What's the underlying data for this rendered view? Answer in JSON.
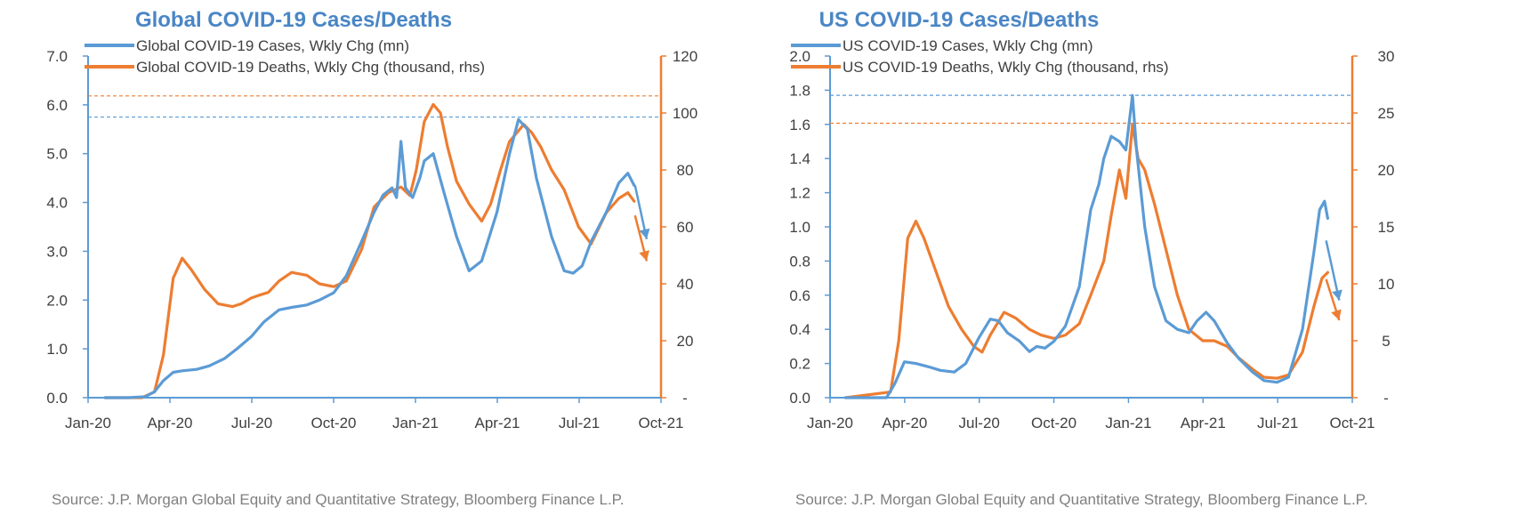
{
  "colors": {
    "cases": "#5B9BD5",
    "deaths": "#ED7D31",
    "title": "#4A86C5",
    "axis_text": "#404040"
  },
  "x_ticks": [
    "Jan-20",
    "Apr-20",
    "Jul-20",
    "Oct-20",
    "Jan-21",
    "Apr-21",
    "Jul-21",
    "Oct-21"
  ],
  "chart_data": [
    {
      "type": "line",
      "title": "Global COVID-19 Cases/Deaths",
      "source": "Source: J.P. Morgan Global Equity and Quantitative Strategy, Bloomberg Finance L.P.",
      "xlim": [
        "2020-01-01",
        "2021-10-01"
      ],
      "ylim": [
        0,
        7
      ],
      "y2lim": [
        0,
        120
      ],
      "y_ticks": [
        "0.0",
        "1.0",
        "2.0",
        "3.0",
        "4.0",
        "5.0",
        "6.0",
        "7.0"
      ],
      "y2_ticks": [
        "-",
        "20",
        "40",
        "60",
        "80",
        "100",
        "120"
      ],
      "legend_position": "top-left",
      "peak_lines": [
        {
          "axis": "y",
          "value": 5.75
        },
        {
          "axis": "y2",
          "value": 106
        }
      ],
      "arrows": [
        {
          "series": "cases",
          "from": [
            "2021-09-02",
            4.35
          ],
          "to": [
            "2021-09-15",
            3.25
          ]
        },
        {
          "series": "deaths",
          "from": [
            "2021-09-02",
            64
          ],
          "to": [
            "2021-09-15",
            48
          ]
        }
      ],
      "series": [
        {
          "key": "cases",
          "axis": "y",
          "name": "Global COVID-19 Cases, Wkly Chg (mn)",
          "x": [
            "2020-01-20",
            "2020-02-15",
            "2020-03-05",
            "2020-03-15",
            "2020-03-25",
            "2020-04-05",
            "2020-04-15",
            "2020-05-01",
            "2020-05-15",
            "2020-06-01",
            "2020-06-15",
            "2020-07-01",
            "2020-07-15",
            "2020-08-01",
            "2020-08-15",
            "2020-09-01",
            "2020-09-15",
            "2020-10-01",
            "2020-10-15",
            "2020-11-01",
            "2020-11-15",
            "2020-11-25",
            "2020-12-05",
            "2020-12-10",
            "2020-12-15",
            "2020-12-20",
            "2020-12-28",
            "2021-01-05",
            "2021-01-10",
            "2021-01-20",
            "2021-02-01",
            "2021-02-15",
            "2021-03-01",
            "2021-03-15",
            "2021-04-01",
            "2021-04-15",
            "2021-04-25",
            "2021-05-05",
            "2021-05-15",
            "2021-06-01",
            "2021-06-15",
            "2021-06-25",
            "2021-07-05",
            "2021-07-15",
            "2021-08-01",
            "2021-08-15",
            "2021-08-25",
            "2021-09-01"
          ],
          "values": [
            0.0,
            0.0,
            0.02,
            0.12,
            0.35,
            0.52,
            0.55,
            0.58,
            0.65,
            0.8,
            1.0,
            1.25,
            1.55,
            1.8,
            1.85,
            1.9,
            2.0,
            2.15,
            2.5,
            3.2,
            3.8,
            4.15,
            4.3,
            4.1,
            5.25,
            4.3,
            4.1,
            4.5,
            4.85,
            5.0,
            4.2,
            3.3,
            2.6,
            2.8,
            3.8,
            5.0,
            5.7,
            5.5,
            4.5,
            3.3,
            2.6,
            2.55,
            2.7,
            3.2,
            3.8,
            4.4,
            4.6,
            4.35
          ]
        },
        {
          "key": "deaths",
          "axis": "y2",
          "name": "Global COVID-19 Deaths, Wkly Chg (thousand, rhs)",
          "x": [
            "2020-01-20",
            "2020-03-01",
            "2020-03-15",
            "2020-03-25",
            "2020-04-05",
            "2020-04-15",
            "2020-04-25",
            "2020-05-10",
            "2020-05-25",
            "2020-06-10",
            "2020-06-20",
            "2020-07-01",
            "2020-07-10",
            "2020-07-20",
            "2020-08-01",
            "2020-08-15",
            "2020-09-01",
            "2020-09-15",
            "2020-10-01",
            "2020-10-15",
            "2020-11-01",
            "2020-11-15",
            "2020-12-01",
            "2020-12-15",
            "2020-12-25",
            "2021-01-01",
            "2021-01-10",
            "2021-01-20",
            "2021-01-28",
            "2021-02-05",
            "2021-02-15",
            "2021-03-01",
            "2021-03-15",
            "2021-03-25",
            "2021-04-05",
            "2021-04-15",
            "2021-05-01",
            "2021-05-10",
            "2021-05-20",
            "2021-06-01",
            "2021-06-15",
            "2021-07-01",
            "2021-07-15",
            "2021-08-01",
            "2021-08-15",
            "2021-08-25",
            "2021-09-01"
          ],
          "values": [
            0,
            0,
            2,
            15,
            42,
            49,
            45,
            38,
            33,
            32,
            33,
            35,
            36,
            37,
            41,
            44,
            43,
            40,
            39,
            41,
            52,
            67,
            72,
            74,
            71,
            80,
            97,
            103,
            100,
            88,
            76,
            68,
            62,
            68,
            80,
            90,
            96,
            93,
            88,
            80,
            73,
            60,
            54,
            65,
            70,
            72,
            69
          ]
        }
      ]
    },
    {
      "type": "line",
      "title": "US COVID-19 Cases/Deaths",
      "source": "Source: J.P. Morgan Global Equity and Quantitative Strategy, Bloomberg Finance L.P.",
      "xlim": [
        "2020-01-01",
        "2021-10-01"
      ],
      "ylim": [
        0,
        2
      ],
      "y2lim": [
        0,
        30
      ],
      "y_ticks": [
        "0.0",
        "0.2",
        "0.4",
        "0.6",
        "0.8",
        "1.0",
        "1.2",
        "1.4",
        "1.6",
        "1.8",
        "2.0"
      ],
      "y2_ticks": [
        "-",
        "5",
        "10",
        "15",
        "20",
        "25",
        "30"
      ],
      "legend_position": "top-left",
      "peak_lines": [
        {
          "axis": "y",
          "value": 1.77
        },
        {
          "axis": "y2",
          "value": 24.1
        }
      ],
      "arrows": [
        {
          "series": "cases",
          "from": [
            "2021-08-30",
            0.92
          ],
          "to": [
            "2021-09-15",
            0.57
          ]
        },
        {
          "series": "deaths",
          "from": [
            "2021-08-30",
            10.4
          ],
          "to": [
            "2021-09-15",
            6.8
          ]
        }
      ],
      "series": [
        {
          "key": "cases",
          "axis": "y",
          "name": "US COVID-19 Cases, Wkly Chg (mn)",
          "x": [
            "2020-01-20",
            "2020-03-10",
            "2020-03-20",
            "2020-04-01",
            "2020-04-15",
            "2020-05-01",
            "2020-05-15",
            "2020-06-01",
            "2020-06-15",
            "2020-07-01",
            "2020-07-15",
            "2020-07-25",
            "2020-08-05",
            "2020-08-20",
            "2020-09-01",
            "2020-09-10",
            "2020-09-20",
            "2020-10-01",
            "2020-10-15",
            "2020-11-01",
            "2020-11-15",
            "2020-11-25",
            "2020-12-01",
            "2020-12-10",
            "2020-12-20",
            "2020-12-28",
            "2021-01-05",
            "2021-01-10",
            "2021-01-20",
            "2021-02-01",
            "2021-02-15",
            "2021-03-01",
            "2021-03-15",
            "2021-03-25",
            "2021-04-05",
            "2021-04-15",
            "2021-05-01",
            "2021-05-15",
            "2021-06-01",
            "2021-06-15",
            "2021-07-01",
            "2021-07-15",
            "2021-08-01",
            "2021-08-15",
            "2021-08-22",
            "2021-08-28",
            "2021-09-01"
          ],
          "values": [
            0,
            0.0,
            0.08,
            0.21,
            0.2,
            0.18,
            0.16,
            0.15,
            0.2,
            0.35,
            0.46,
            0.45,
            0.38,
            0.33,
            0.27,
            0.3,
            0.29,
            0.33,
            0.42,
            0.65,
            1.1,
            1.25,
            1.4,
            1.53,
            1.5,
            1.45,
            1.77,
            1.45,
            1.0,
            0.65,
            0.45,
            0.4,
            0.38,
            0.45,
            0.5,
            0.45,
            0.32,
            0.23,
            0.15,
            0.1,
            0.09,
            0.12,
            0.4,
            0.85,
            1.1,
            1.15,
            1.05
          ]
        },
        {
          "key": "deaths",
          "axis": "y2",
          "name": "US COVID-19 Deaths, Wkly Chg (thousand, rhs)",
          "x": [
            "2020-01-20",
            "2020-03-15",
            "2020-03-25",
            "2020-04-05",
            "2020-04-15",
            "2020-04-25",
            "2020-05-10",
            "2020-05-25",
            "2020-06-10",
            "2020-06-25",
            "2020-07-05",
            "2020-07-15",
            "2020-08-01",
            "2020-08-15",
            "2020-09-01",
            "2020-09-15",
            "2020-10-01",
            "2020-10-15",
            "2020-11-01",
            "2020-11-15",
            "2020-12-01",
            "2020-12-10",
            "2020-12-20",
            "2020-12-28",
            "2021-01-05",
            "2021-01-12",
            "2021-01-20",
            "2021-02-01",
            "2021-02-15",
            "2021-03-01",
            "2021-03-15",
            "2021-04-01",
            "2021-04-15",
            "2021-05-01",
            "2021-05-15",
            "2021-06-01",
            "2021-06-15",
            "2021-07-01",
            "2021-07-15",
            "2021-08-01",
            "2021-08-15",
            "2021-08-25",
            "2021-09-01"
          ],
          "values": [
            0,
            0.5,
            5,
            14,
            15.5,
            14,
            11,
            8,
            6,
            4.5,
            4,
            5.5,
            7.5,
            7,
            6,
            5.5,
            5.2,
            5.5,
            6.5,
            9,
            12,
            16,
            20,
            17.5,
            24,
            21,
            20,
            17,
            13,
            9,
            6,
            5,
            5,
            4.5,
            3.5,
            2.5,
            1.8,
            1.7,
            2,
            4,
            8,
            10.5,
            11
          ]
        }
      ]
    }
  ]
}
